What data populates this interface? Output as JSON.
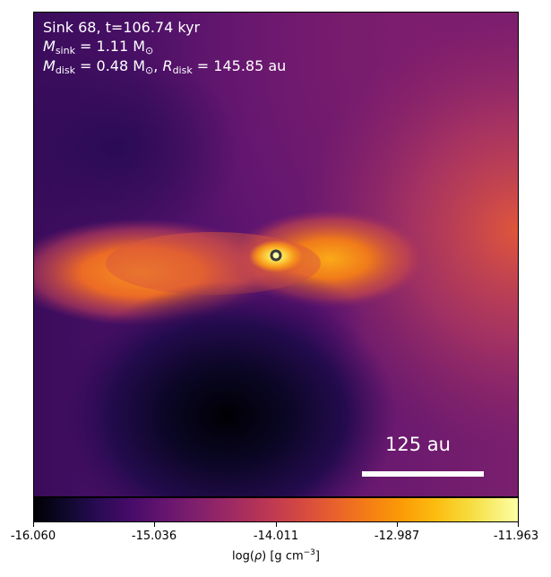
{
  "overlay": {
    "title": "Sink 68, t=106.74 kyr",
    "sink_mass_symbol": "M",
    "sink_mass_sub": "sink",
    "sink_mass_value": " = 1.11 M",
    "sink_mass_unit_sub": "⊙",
    "disk_mass_symbol": "M",
    "disk_mass_sub": "disk",
    "disk_mass_value": " = 0.48 M",
    "disk_mass_unit_sub": "⊙",
    "disk_radius_symbol": "R",
    "disk_radius_sub": "disk",
    "disk_radius_value": " = 145.85 au"
  },
  "scale_bar": {
    "label": "125 au"
  },
  "colorbar": {
    "colormap": "inferno",
    "ticks": [
      "-16.060",
      "-15.036",
      "-14.011",
      "-12.987",
      "-11.963"
    ],
    "label_prefix": "log(",
    "label_rho": "ρ",
    "label_mid": ") [g cm",
    "label_exp": "−3",
    "label_suffix": "]"
  }
}
